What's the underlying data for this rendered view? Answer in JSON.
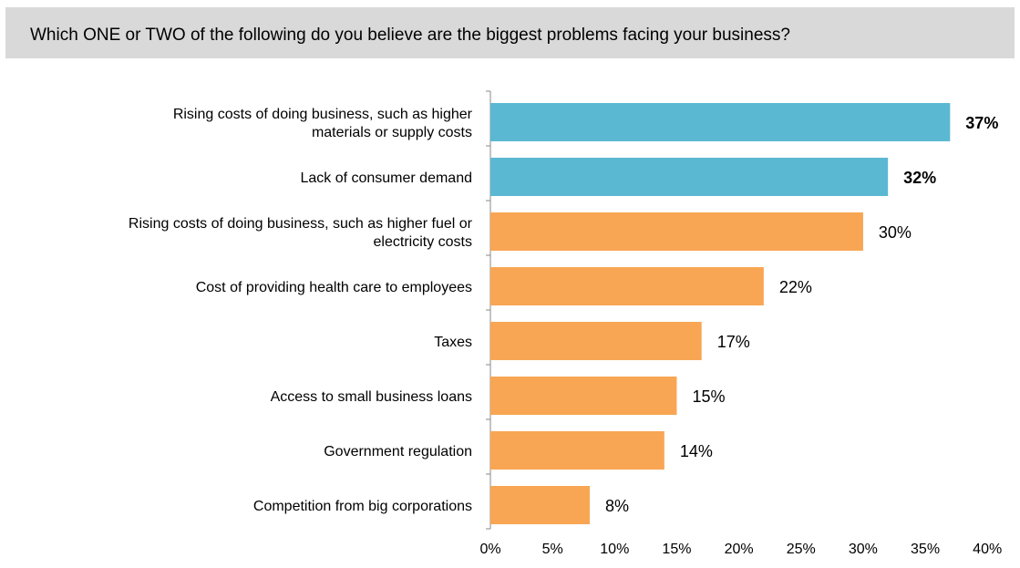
{
  "question": "Which ONE or TWO of the following do you believe are the biggest problems facing your business?",
  "colors": {
    "highlight": "#5bb8d2",
    "default": "#f8a654",
    "header_bg": "#d9d9d9"
  },
  "chart_data": {
    "type": "bar",
    "orientation": "horizontal",
    "title": "",
    "xlabel": "",
    "ylabel": "",
    "xlim": [
      0,
      40
    ],
    "x_ticks": [
      "0%",
      "5%",
      "10%",
      "15%",
      "20%",
      "25%",
      "30%",
      "35%",
      "40%"
    ],
    "grid": false,
    "categories": [
      [
        "Rising costs of doing business, such as higher",
        "materials or supply costs"
      ],
      [
        "Lack of consumer demand"
      ],
      [
        "Rising costs of doing business, such as higher fuel or",
        "electricity costs"
      ],
      [
        "Cost of providing health care to employees"
      ],
      [
        "Taxes"
      ],
      [
        "Access to small business loans"
      ],
      [
        "Government regulation"
      ],
      [
        "Competition from big corporations"
      ]
    ],
    "values": [
      37,
      32,
      30,
      22,
      17,
      15,
      14,
      8
    ],
    "value_labels": [
      "37%",
      "32%",
      "30%",
      "22%",
      "17%",
      "15%",
      "14%",
      "8%"
    ],
    "highlighted": [
      true,
      true,
      false,
      false,
      false,
      false,
      false,
      false
    ]
  }
}
